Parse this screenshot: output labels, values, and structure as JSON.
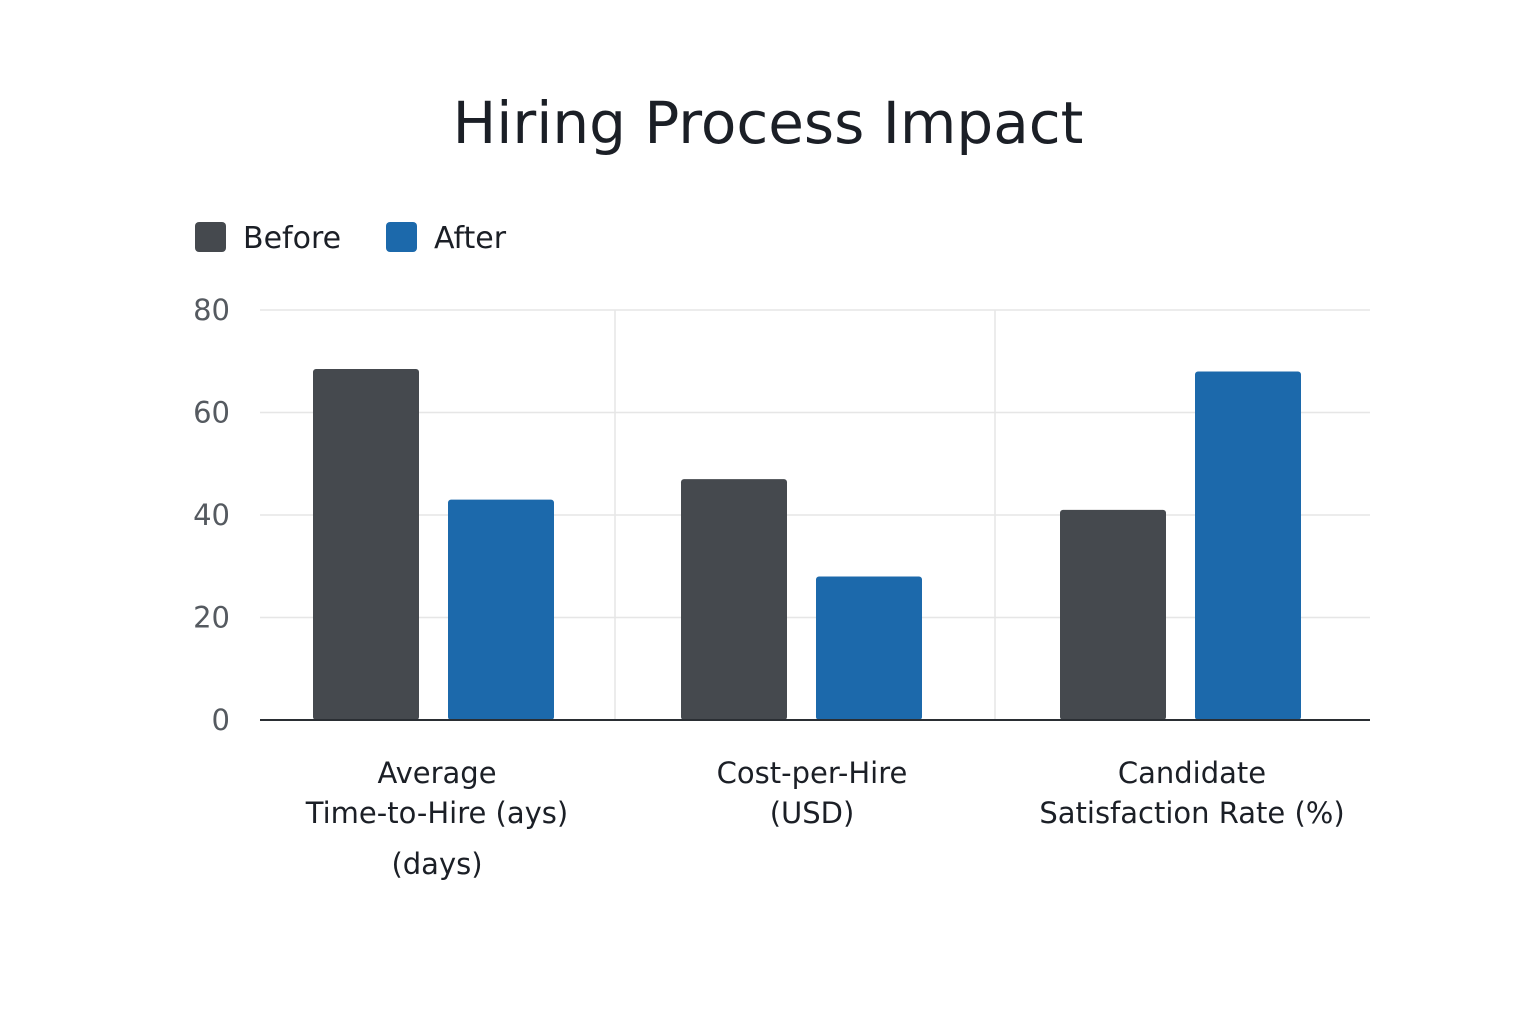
{
  "chart_data": {
    "type": "bar",
    "title": "Hiring Process Impact",
    "xlabel": "",
    "ylabel": "",
    "ylim": [
      0,
      80
    ],
    "yticks": [
      0,
      20,
      40,
      60,
      80
    ],
    "grid": true,
    "legend_placement": "top-left",
    "categories": [
      [
        "Average",
        "Time-to-Hire (ays)",
        "(days)"
      ],
      [
        "Cost-per-Hire",
        "(USD)"
      ],
      [
        "Candidate",
        "Satisfaction Rate (%)"
      ]
    ],
    "series": [
      {
        "name": "Before",
        "color": "#45494e",
        "values": [
          68.5,
          47,
          41
        ]
      },
      {
        "name": "After",
        "color": "#1c69ab",
        "values": [
          43,
          28,
          68
        ]
      }
    ]
  }
}
